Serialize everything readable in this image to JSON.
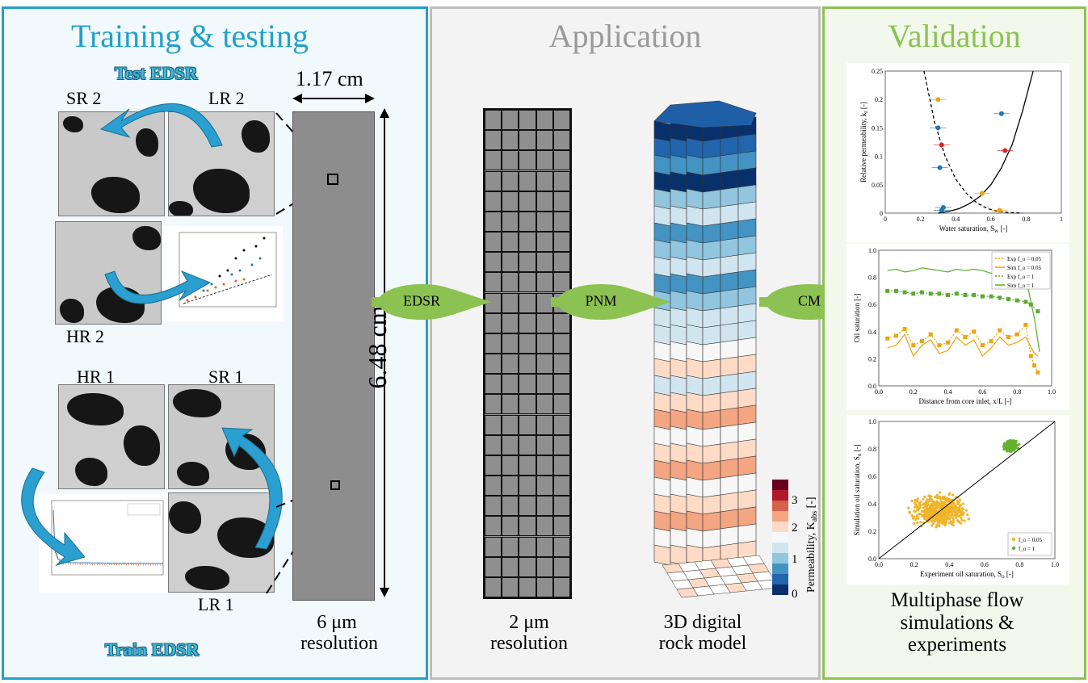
{
  "panels": {
    "training": {
      "title": "Training & testing",
      "color": "#21a1c9"
    },
    "application": {
      "title": "Application",
      "color": "#999999"
    },
    "validation": {
      "title": "Validation",
      "color": "#8cc251"
    }
  },
  "training": {
    "test_edsr": "Test EDSR",
    "train_edsr": "Train EDSR",
    "sr2": "SR 2",
    "lr2": "LR 2",
    "hr2": "HR 2",
    "hr1": "HR 1",
    "sr1": "SR 1",
    "lr1": "LR 1",
    "width_dim": "1.17 cm",
    "height_dim": "6.48 cm",
    "resolution_line1": "6 μm",
    "resolution_line2": "resolution"
  },
  "flow_arrows": {
    "a1": "EDSR",
    "a2": "PNM",
    "a3": "CM"
  },
  "application": {
    "grid_res_line1": "2 μm",
    "grid_res_line2": "resolution",
    "model_line1": "3D digital",
    "model_line2": "rock model",
    "colorbar_label": "Permeability, K",
    "colorbar_sub": "abs",
    "colorbar_unit": " [-]",
    "colorbar_ticks": [
      "3",
      "2",
      "1",
      "0"
    ]
  },
  "validation": {
    "caption_line1": "Multiphase flow",
    "caption_line2": "simulations &",
    "caption_line3": "experiments"
  },
  "chart_data": [
    {
      "type": "line",
      "xlabel": "Water saturation, S",
      "xlabel_sub": "w",
      "xlabel_unit": " [-]",
      "ylabel": "Relative permeability, k",
      "ylabel_sub": "r",
      "ylabel_unit": " [-]",
      "xlim": [
        0,
        1
      ],
      "ylim": [
        0,
        0.25
      ],
      "xticks": [
        "0",
        "0.2",
        "0.4",
        "0.6",
        "0.8",
        "1"
      ],
      "yticks": [
        "0",
        "0.05",
        "0.1",
        "0.15",
        "0.2",
        "0.25"
      ],
      "series": [
        {
          "style": "dashed",
          "x": [
            0.22,
            0.28,
            0.34,
            0.4,
            0.46,
            0.52,
            0.58,
            0.64,
            0.7,
            0.78
          ],
          "y": [
            0.25,
            0.16,
            0.1,
            0.06,
            0.035,
            0.018,
            0.008,
            0.003,
            0.001,
            0.0
          ]
        },
        {
          "style": "solid",
          "x": [
            0.3,
            0.36,
            0.42,
            0.48,
            0.54,
            0.6,
            0.66,
            0.72,
            0.78,
            0.84
          ],
          "y": [
            0.0,
            0.003,
            0.008,
            0.017,
            0.03,
            0.05,
            0.08,
            0.12,
            0.18,
            0.25
          ]
        },
        {
          "style": "points-blue",
          "x": [
            0.3,
            0.31,
            0.32,
            0.33,
            0.66
          ],
          "y": [
            0.15,
            0.08,
            0.005,
            0.01,
            0.175
          ]
        },
        {
          "style": "points-red",
          "x": [
            0.32,
            0.68
          ],
          "y": [
            0.12,
            0.11
          ]
        },
        {
          "style": "points-orange",
          "x": [
            0.3,
            0.55,
            0.65
          ],
          "y": [
            0.2,
            0.035,
            0.005
          ]
        }
      ]
    },
    {
      "type": "line",
      "xlabel": "Distance from core inlet, x/L [-]",
      "ylabel": "Oil saturation [-]",
      "xlim": [
        0,
        1
      ],
      "ylim": [
        0,
        1
      ],
      "xticks": [
        "0.0",
        "0.2",
        "0.4",
        "0.6",
        "0.8",
        "1.0"
      ],
      "yticks": [
        "0.0",
        "0.2",
        "0.4",
        "0.6",
        "0.8",
        "1.0"
      ],
      "legend": [
        "Exp f_o = 0.05",
        "Sim f_o = 0.05",
        "Exp f_o = 1",
        "Sim f_o = 1"
      ],
      "series": [
        {
          "name": "Exp f_o = 0.05",
          "x": [
            0.05,
            0.1,
            0.15,
            0.2,
            0.25,
            0.3,
            0.35,
            0.4,
            0.45,
            0.5,
            0.55,
            0.6,
            0.65,
            0.7,
            0.75,
            0.8,
            0.85,
            0.88,
            0.9,
            0.92
          ],
          "y": [
            0.35,
            0.37,
            0.42,
            0.3,
            0.33,
            0.38,
            0.3,
            0.32,
            0.41,
            0.36,
            0.4,
            0.3,
            0.33,
            0.41,
            0.36,
            0.38,
            0.45,
            0.22,
            0.15,
            0.1
          ]
        },
        {
          "name": "Sim f_o = 0.05",
          "x": [
            0.05,
            0.1,
            0.15,
            0.2,
            0.25,
            0.3,
            0.35,
            0.4,
            0.45,
            0.5,
            0.55,
            0.6,
            0.65,
            0.7,
            0.75,
            0.8,
            0.85,
            0.9,
            0.92
          ],
          "y": [
            0.28,
            0.3,
            0.38,
            0.22,
            0.3,
            0.34,
            0.24,
            0.26,
            0.36,
            0.3,
            0.34,
            0.22,
            0.28,
            0.36,
            0.3,
            0.32,
            0.36,
            0.24,
            0.22
          ]
        },
        {
          "name": "Exp f_o = 1",
          "x": [
            0.05,
            0.1,
            0.15,
            0.2,
            0.25,
            0.3,
            0.35,
            0.4,
            0.45,
            0.5,
            0.55,
            0.6,
            0.65,
            0.7,
            0.75,
            0.8,
            0.85,
            0.88,
            0.92
          ],
          "y": [
            0.7,
            0.7,
            0.69,
            0.68,
            0.69,
            0.68,
            0.68,
            0.67,
            0.68,
            0.67,
            0.67,
            0.66,
            0.66,
            0.65,
            0.64,
            0.63,
            0.62,
            0.6,
            0.55
          ]
        },
        {
          "name": "Sim f_o = 1",
          "x": [
            0.05,
            0.1,
            0.15,
            0.2,
            0.25,
            0.3,
            0.35,
            0.4,
            0.45,
            0.5,
            0.55,
            0.6,
            0.65,
            0.7,
            0.75,
            0.8,
            0.85,
            0.9,
            0.93
          ],
          "y": [
            0.85,
            0.86,
            0.84,
            0.85,
            0.87,
            0.86,
            0.85,
            0.84,
            0.86,
            0.85,
            0.86,
            0.85,
            0.83,
            0.84,
            0.8,
            0.82,
            0.8,
            0.5,
            0.25
          ]
        }
      ]
    },
    {
      "type": "scatter",
      "xlabel": "Experiment oil saturation, S",
      "xlabel_sub": "o",
      "xlabel_unit": " [-]",
      "ylabel": "Simulation oil saturation, S",
      "ylabel_sub": "o",
      "ylabel_unit": " [-]",
      "xlim": [
        0,
        1
      ],
      "ylim": [
        0,
        1
      ],
      "xticks": [
        "0.0",
        "0.2",
        "0.4",
        "0.6",
        "0.8",
        "1.0"
      ],
      "yticks": [
        "0.0",
        "0.2",
        "0.4",
        "0.6",
        "0.8",
        "1.0"
      ],
      "legend": [
        "f_o = 0.05",
        "f_o = 1"
      ],
      "series": [
        {
          "name": "f_o = 0.05",
          "cluster_center": [
            0.35,
            0.35
          ],
          "cluster_spread": [
            0.2,
            0.15
          ],
          "count": 500
        },
        {
          "name": "f_o = 1",
          "cluster_center": [
            0.75,
            0.82
          ],
          "cluster_spread": [
            0.05,
            0.05
          ],
          "count": 250
        }
      ],
      "reference_line": {
        "x": [
          0,
          1
        ],
        "y": [
          0,
          1
        ]
      }
    }
  ]
}
